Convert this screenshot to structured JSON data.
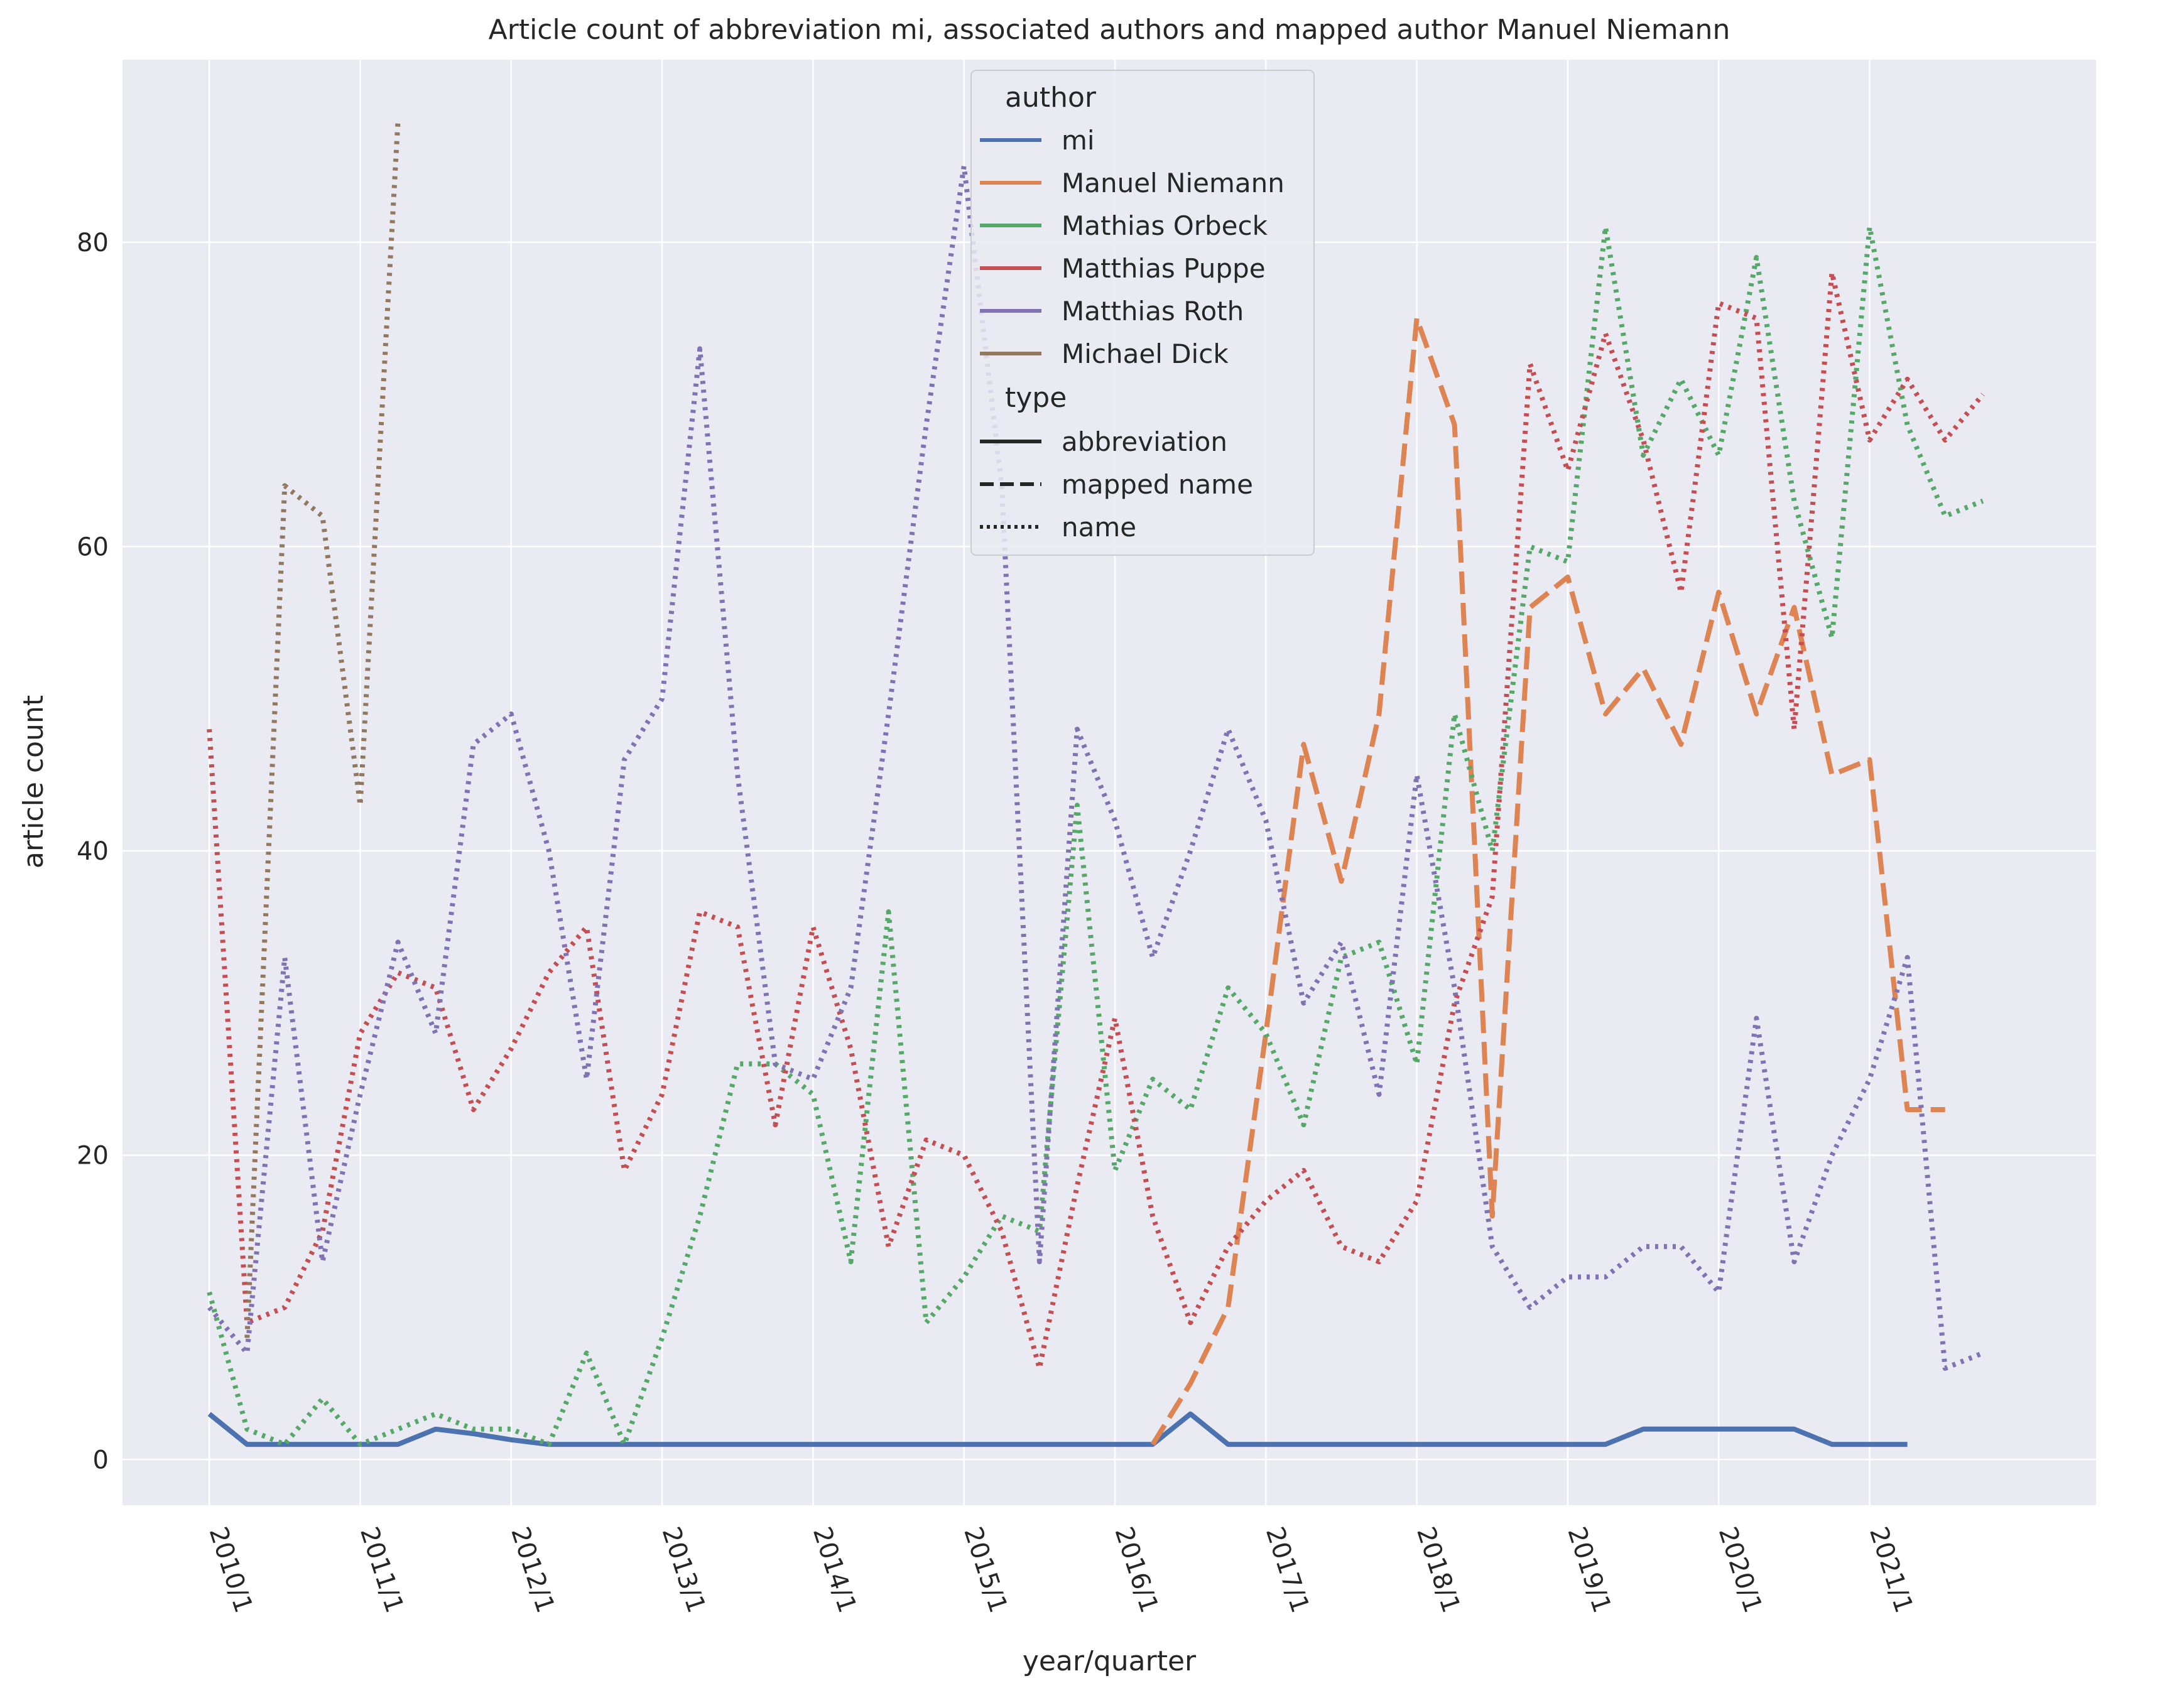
{
  "chart_data": {
    "type": "line",
    "title": "Article count of abbreviation mi, associated authors and mapped author Manuel Niemann",
    "xlabel": "year/quarter",
    "ylabel": "article count",
    "xtick_labels": [
      "2010/1",
      "2011/1",
      "2012/1",
      "2013/1",
      "2014/1",
      "2015/1",
      "2016/1",
      "2017/1",
      "2018/1",
      "2019/1",
      "2020/1",
      "2021/1"
    ],
    "yticks": [
      0,
      20,
      40,
      60,
      80
    ],
    "ylim": [
      -3,
      92
    ],
    "x_index_range": [
      -2.3,
      50
    ],
    "grid": true,
    "background": "#eaeaf2",
    "legend": {
      "placement": "top-center",
      "author_title": "author",
      "type_title": "type",
      "authors": [
        {
          "name": "mi",
          "color": "#4c72b0"
        },
        {
          "name": "Manuel Niemann",
          "color": "#dd8452"
        },
        {
          "name": "Mathias Orbeck",
          "color": "#55a868"
        },
        {
          "name": "Matthias Puppe",
          "color": "#c44e52"
        },
        {
          "name": "Matthias Roth",
          "color": "#8172b3"
        },
        {
          "name": "Michael Dick",
          "color": "#937860"
        }
      ],
      "types": [
        {
          "name": "abbreviation",
          "dash": "solid"
        },
        {
          "name": "mapped name",
          "dash": "dashed"
        },
        {
          "name": "name",
          "dash": "dotted"
        }
      ]
    },
    "series": [
      {
        "name": "mi",
        "author": "mi",
        "type": "abbreviation",
        "color": "#4c72b0",
        "start": 0,
        "values": [
          3,
          1,
          1,
          1,
          1,
          1,
          2,
          1.7,
          1.3,
          1,
          1,
          1,
          1,
          1,
          1,
          1,
          1,
          1,
          1,
          1,
          1,
          1,
          1,
          1,
          1,
          1,
          3,
          1,
          1,
          1,
          1,
          1,
          1,
          1,
          1,
          1,
          1,
          1,
          2,
          2,
          2,
          2,
          2,
          1,
          1,
          1
        ]
      },
      {
        "name": "Manuel Niemann",
        "author": "Manuel Niemann",
        "type": "mapped name",
        "color": "#dd8452",
        "start": 25,
        "values": [
          1,
          5,
          10,
          28,
          47,
          38,
          49,
          75,
          68,
          16,
          56,
          58,
          49,
          52,
          47,
          57,
          49,
          56,
          45,
          46,
          23,
          23
        ]
      },
      {
        "name": "Mathias Orbeck",
        "author": "Mathias Orbeck",
        "type": "name",
        "color": "#55a868",
        "start": 0,
        "values": [
          11,
          2,
          1,
          4,
          1,
          2,
          3,
          2,
          2,
          1,
          7,
          1,
          8,
          16,
          26,
          26,
          24,
          13,
          36,
          9,
          12,
          16,
          15,
          43,
          19,
          25,
          23,
          31,
          28,
          22,
          33,
          34,
          26,
          49,
          40,
          60,
          59,
          81,
          66,
          71,
          66,
          79,
          63,
          54,
          81,
          68,
          62,
          63
        ]
      },
      {
        "name": "Matthias Puppe",
        "author": "Matthias Puppe",
        "type": "name",
        "color": "#c44e52",
        "start": 0,
        "values": [
          48,
          9,
          10,
          15,
          28,
          32,
          31,
          23,
          27,
          32,
          35,
          19,
          24,
          36,
          35,
          22,
          35,
          27,
          14,
          21,
          20,
          15,
          6,
          18,
          29,
          16,
          9,
          14,
          17,
          19,
          14,
          13,
          17,
          30,
          37,
          72,
          65,
          74,
          67,
          57,
          76,
          75,
          48,
          78,
          67,
          71,
          67,
          70
        ]
      },
      {
        "name": "Matthias Roth",
        "author": "Matthias Roth",
        "type": "name",
        "color": "#8172b3",
        "start": 0,
        "values": [
          10,
          7,
          33,
          13,
          24,
          34,
          28,
          47,
          49,
          40,
          25,
          46,
          50,
          73,
          45,
          26,
          25,
          31,
          49,
          68,
          85,
          64,
          13,
          48,
          42,
          33,
          40,
          48,
          42,
          30,
          34,
          24,
          45,
          31,
          14,
          10,
          12,
          12,
          14,
          14,
          11,
          29,
          13,
          20,
          25,
          33,
          6,
          7
        ]
      },
      {
        "name": "Michael Dick",
        "author": "Michael Dick",
        "type": "name",
        "color": "#937860",
        "start": 0,
        "values": [
          null,
          8,
          64,
          62,
          43,
          88
        ]
      }
    ]
  }
}
